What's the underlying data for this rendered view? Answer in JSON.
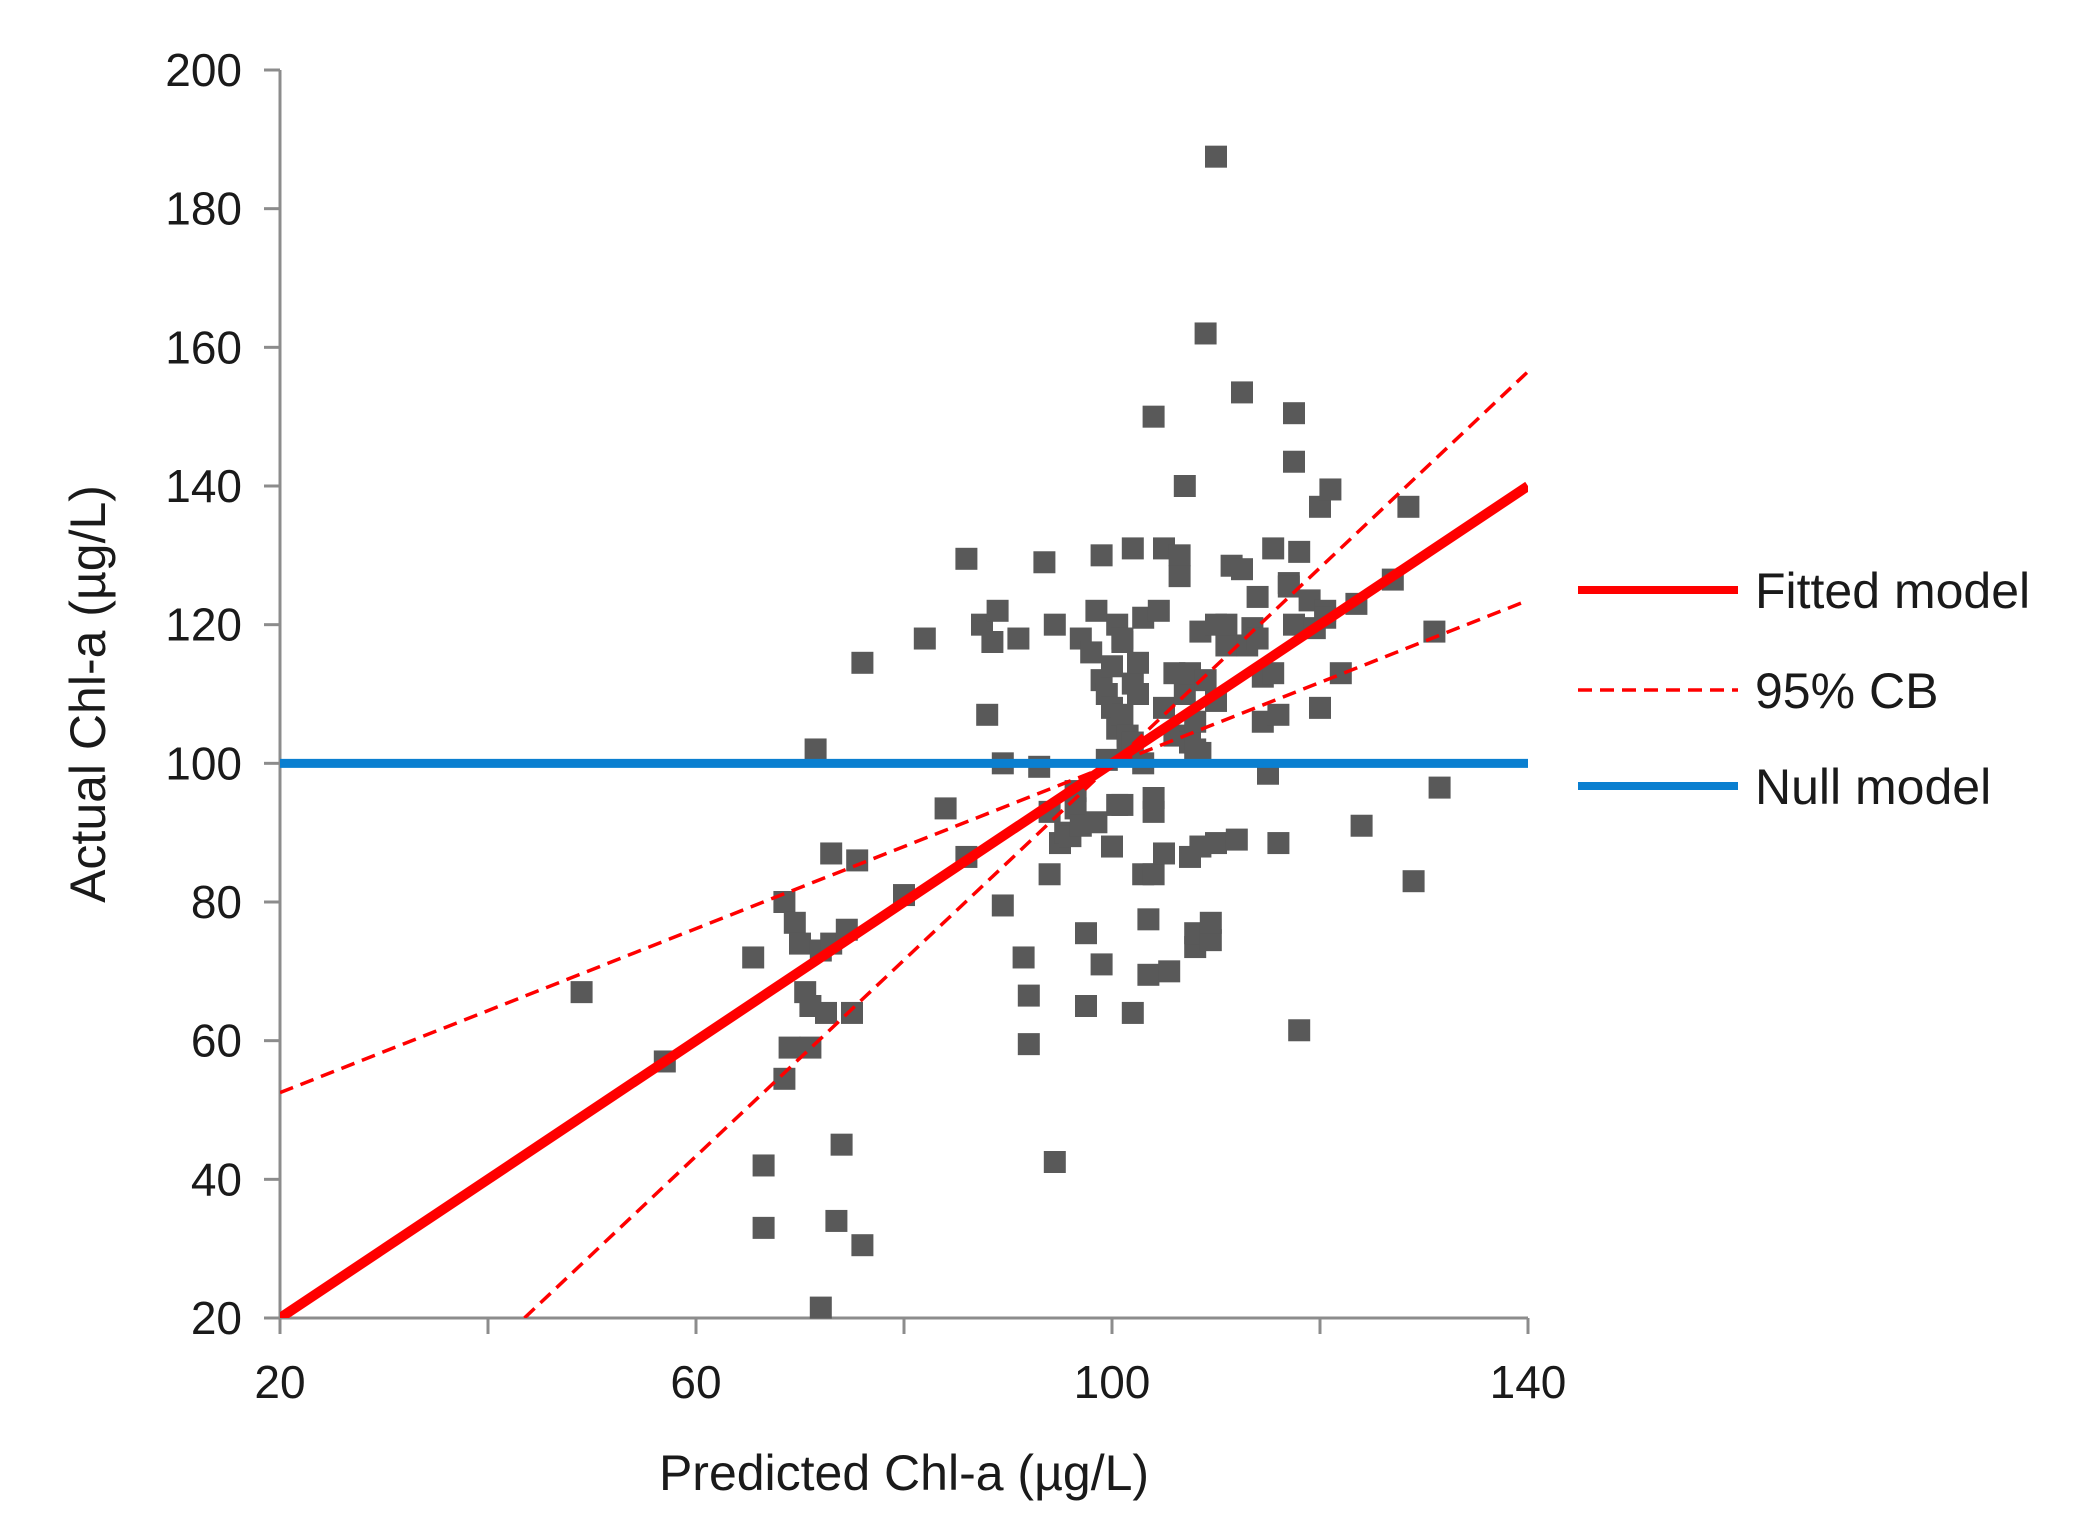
{
  "chart_data": {
    "type": "scatter",
    "title": "",
    "xlabel": "Predicted Chl-a (µg/L)",
    "ylabel": "Actual Chl-a (µg/L)",
    "xlim": [
      20,
      140
    ],
    "ylim": [
      20,
      200
    ],
    "xticks": [
      20,
      60,
      100,
      140
    ],
    "xminor": [
      20,
      40,
      60,
      80,
      100,
      120,
      140
    ],
    "yticks": [
      20,
      40,
      60,
      80,
      100,
      120,
      140,
      160,
      180,
      200
    ],
    "legend_position": "right",
    "colors": {
      "points": "#595959",
      "fitted": "#ff0000",
      "band": "#ff0000",
      "null": "#0a7fd0",
      "axis": "#8c8c8c",
      "text": "#1a1a1a"
    },
    "points": [
      [
        49,
        67
      ],
      [
        57,
        57
      ],
      [
        65.5,
        72
      ],
      [
        66.5,
        42
      ],
      [
        66.5,
        33
      ],
      [
        68.5,
        80
      ],
      [
        68.5,
        54.5
      ],
      [
        69,
        59
      ],
      [
        69.5,
        77
      ],
      [
        70,
        74
      ],
      [
        70.5,
        67
      ],
      [
        71,
        59
      ],
      [
        71,
        65
      ],
      [
        71.5,
        102
      ],
      [
        72,
        73
      ],
      [
        72,
        21.5
      ],
      [
        72.5,
        64
      ],
      [
        73,
        74
      ],
      [
        73,
        87
      ],
      [
        73.5,
        34
      ],
      [
        74,
        45
      ],
      [
        74.5,
        76
      ],
      [
        75,
        64
      ],
      [
        75.5,
        86
      ],
      [
        76,
        114.5
      ],
      [
        76,
        30.5
      ],
      [
        80,
        81
      ],
      [
        82,
        118
      ],
      [
        84,
        93.5
      ],
      [
        86,
        86.5
      ],
      [
        86,
        129.5
      ],
      [
        87.5,
        120
      ],
      [
        88,
        107
      ],
      [
        88.5,
        117.5
      ],
      [
        89,
        122
      ],
      [
        89.5,
        100
      ],
      [
        89.5,
        79.5
      ],
      [
        91,
        118
      ],
      [
        91.5,
        72
      ],
      [
        92,
        66.5
      ],
      [
        92,
        59.5
      ],
      [
        93,
        99.5
      ],
      [
        93.5,
        129
      ],
      [
        94,
        84
      ],
      [
        94,
        93
      ],
      [
        94.5,
        120
      ],
      [
        94.5,
        42.5
      ],
      [
        95,
        88.5
      ],
      [
        95.5,
        90
      ],
      [
        96,
        89.5
      ],
      [
        96.5,
        96
      ],
      [
        96.5,
        93.5
      ],
      [
        97,
        91
      ],
      [
        97,
        118
      ],
      [
        97.5,
        75.5
      ],
      [
        97.5,
        65
      ],
      [
        98,
        116
      ],
      [
        98.5,
        122
      ],
      [
        98.5,
        91.5
      ],
      [
        99,
        71
      ],
      [
        99,
        130
      ],
      [
        99,
        112
      ],
      [
        99.5,
        100.5
      ],
      [
        99.5,
        110
      ],
      [
        100,
        114
      ],
      [
        100,
        88
      ],
      [
        100,
        108
      ],
      [
        100.5,
        120
      ],
      [
        100.5,
        105
      ],
      [
        100.5,
        94
      ],
      [
        101,
        118
      ],
      [
        101,
        107
      ],
      [
        101,
        117.5
      ],
      [
        101,
        94
      ],
      [
        101.5,
        104
      ],
      [
        101.5,
        102
      ],
      [
        102,
        131
      ],
      [
        102,
        103
      ],
      [
        102,
        64
      ],
      [
        102,
        111.5
      ],
      [
        102.5,
        110
      ],
      [
        102.5,
        114.5
      ],
      [
        103,
        84
      ],
      [
        103,
        121
      ],
      [
        103,
        100
      ],
      [
        103.5,
        77.5
      ],
      [
        103.5,
        69.5
      ],
      [
        104,
        93
      ],
      [
        104,
        95
      ],
      [
        104,
        150
      ],
      [
        104,
        84
      ],
      [
        104.5,
        122
      ],
      [
        105,
        131
      ],
      [
        105,
        108
      ],
      [
        105,
        87
      ],
      [
        105.5,
        70
      ],
      [
        106,
        113
      ],
      [
        106,
        104
      ],
      [
        106.5,
        130
      ],
      [
        106.5,
        127
      ],
      [
        107,
        140
      ],
      [
        107,
        110
      ],
      [
        107.5,
        103
      ],
      [
        107.5,
        86.5
      ],
      [
        107.5,
        113
      ],
      [
        108,
        73.5
      ],
      [
        108,
        102
      ],
      [
        108,
        75.5
      ],
      [
        108,
        106
      ],
      [
        108.5,
        88
      ],
      [
        108.5,
        119
      ],
      [
        108.5,
        101.5
      ],
      [
        109,
        162
      ],
      [
        109,
        112
      ],
      [
        109.5,
        74.5
      ],
      [
        109.5,
        77
      ],
      [
        110,
        187.5
      ],
      [
        110,
        109
      ],
      [
        110,
        88.5
      ],
      [
        110,
        120
      ],
      [
        111,
        117
      ],
      [
        111,
        120
      ],
      [
        111.5,
        128.5
      ],
      [
        112,
        89
      ],
      [
        112.5,
        128
      ],
      [
        112.5,
        153.5
      ],
      [
        113,
        117
      ],
      [
        113.5,
        119.5
      ],
      [
        114,
        124
      ],
      [
        114,
        118
      ],
      [
        114.5,
        106
      ],
      [
        114.5,
        112.5
      ],
      [
        115,
        98.5
      ],
      [
        115.5,
        131
      ],
      [
        115.5,
        113
      ],
      [
        116,
        88.5
      ],
      [
        116,
        107
      ],
      [
        117,
        126
      ],
      [
        117,
        125.5
      ],
      [
        117.5,
        143.5
      ],
      [
        117.5,
        150.5
      ],
      [
        117.5,
        120
      ],
      [
        118,
        61.5
      ],
      [
        118,
        130.5
      ],
      [
        119,
        123.5
      ],
      [
        119.5,
        119.5
      ],
      [
        120,
        108
      ],
      [
        120,
        137
      ],
      [
        120.5,
        122
      ],
      [
        120.5,
        121
      ],
      [
        121,
        139.5
      ],
      [
        122,
        113
      ],
      [
        123.5,
        123
      ],
      [
        124,
        91
      ],
      [
        127,
        126.5
      ],
      [
        128.5,
        137
      ],
      [
        129,
        83
      ],
      [
        131,
        119
      ],
      [
        131.5,
        96.5
      ]
    ],
    "series": [
      {
        "name": "Fitted model",
        "style": "solid",
        "x": [
          20,
          140
        ],
        "y": [
          20,
          140
        ]
      },
      {
        "name": "95% CB",
        "style": "dashed",
        "x": [
          20,
          140
        ],
        "y": [
          52.5,
          123.5
        ]
      },
      {
        "name": "95% CB",
        "style": "dashed",
        "x": [
          43.5,
          140
        ],
        "y": [
          20,
          156.5
        ],
        "legend": false
      },
      {
        "name": "Null model",
        "style": "solid",
        "x": [
          20,
          140
        ],
        "y": [
          100,
          100
        ]
      }
    ],
    "legend": [
      {
        "label": "Fitted model",
        "style": "solid-red"
      },
      {
        "label": "95% CB",
        "style": "dashed-red"
      },
      {
        "label": "Null model",
        "style": "solid-blue"
      }
    ]
  }
}
